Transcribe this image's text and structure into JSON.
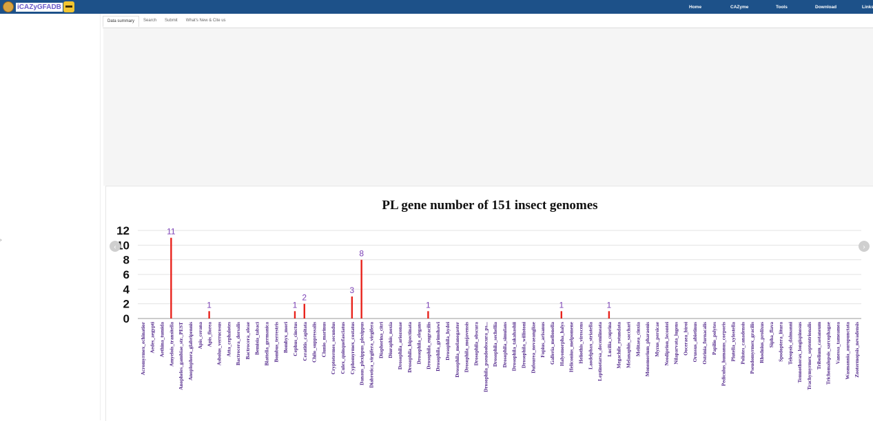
{
  "app": {
    "logo_text": "iCAZyGFADB"
  },
  "nav": {
    "items": [
      "Home",
      "CAZyme",
      "Tools",
      "Download",
      "Links"
    ]
  },
  "tabs": [
    "Data summary",
    "Search",
    "Submit",
    "What's New & Cite us"
  ],
  "sidebar_toggle": "›",
  "carousel": {
    "prev_label": "‹",
    "next_label": "›"
  },
  "chart_data": {
    "type": "bar",
    "title": "PL gene number of 151 insect genomes",
    "xlabel": "",
    "ylabel": "",
    "ylim": [
      0,
      12
    ],
    "yticks": [
      0,
      2,
      4,
      6,
      8,
      10,
      12
    ],
    "grid": true,
    "bar_color": "#e8231c",
    "label_color": "#7a3fb5",
    "categories": [
      "Acromyrmex_echinatior",
      "Aedes_aegypti",
      "Aethina_tumida",
      "Amyelois_transitella",
      "Anopheles_gambiae_str._PEST",
      "Anoplophora_glabripennis",
      "Apis_cerana",
      "Apis_florea",
      "Asbolus_verrucosus",
      "Atta_cephalotes",
      "Bactrocera_dorsalis",
      "Bactrocera_oleae",
      "Bemisia_tabaci",
      "Blattella_germanica",
      "Bombus_terrestris",
      "Bombyx_mori",
      "Cephus_cinctus",
      "Ceratitis_capitata",
      "Chilo_suppressalis",
      "Clunio_marinus",
      "Cryptotermes_secundus",
      "Culex_quinquefasciatus",
      "Cyphomyrmex_costatus",
      "Danaus_plexippus_plexippus",
      "Diabrotica_virgifera_virgifera",
      "Diaphorina_citri",
      "Diuraphis_noxia",
      "Drosophila_ariozonae",
      "Drosophila_bipectinata",
      "Drosophila_elegans",
      "Drosophila_eugracilis",
      "Drosophila_grimshawi",
      "Drosophila_hydei",
      "Drosophila_melanogaster",
      "Drosophila_mojavensis",
      "Drosophila_obscura",
      "Drosophila_pseudoobscura_ps...",
      "Drosophila_sechellia",
      "Drosophila_simulans",
      "Drosophila_takahashii",
      "Drosophila_willistoni",
      "Dufourea_novaeangliae",
      "Fopius_arisanus",
      "Galleria_mellonella",
      "Halyomorpha_halys",
      "Heliconius_melpomene",
      "Heliothis_virescens",
      "Laodelphax_striatella",
      "Leptinotarsa_decemlineata",
      "Lucilia_cuprina",
      "Megachile_rotundata",
      "Melanaphis_sacchari",
      "Melitaea_cinxia",
      "Monomorium_pharaonis",
      "Myzus_persicae",
      "Neodiprion_lecontei",
      "Nilaparvata_lugens",
      "Ooceraea_biroi",
      "Orussus_abietinus",
      "Ostrinia_furnacalis",
      "Papilio_polytes",
      "Pediculus_humanus_corporis",
      "Plutella_xylostella",
      "Polistes_canadensis",
      "Pseudomyrmex_gracilis",
      "Rhodnius_prolixus",
      "Sipha_flava",
      "Spodoptera_litura",
      "Teleopsis_dalmanni",
      "Temnothorax_longispinosus",
      "Trachymyrmex_septentrionalis",
      "Tribolium_castaneum",
      "Trichomalopsis_sarcophagae",
      "Vanessa_tameamea",
      "Wasmannia_auropunctata",
      "Zootermopsis_nevadensis"
    ],
    "values": [
      0,
      0,
      0,
      11,
      0,
      0,
      0,
      1,
      0,
      0,
      0,
      0,
      0,
      0,
      0,
      0,
      1,
      2,
      0,
      0,
      0,
      0,
      3,
      8,
      0,
      0,
      0,
      0,
      0,
      0,
      1,
      0,
      0,
      0,
      0,
      0,
      0,
      0,
      0,
      0,
      0,
      0,
      0,
      0,
      1,
      0,
      0,
      0,
      0,
      1,
      0,
      0,
      0,
      0,
      0,
      0,
      0,
      0,
      0,
      0,
      0,
      0,
      0,
      0,
      0,
      0,
      0,
      0,
      0,
      0,
      0,
      0,
      0,
      0,
      0,
      0
    ]
  }
}
